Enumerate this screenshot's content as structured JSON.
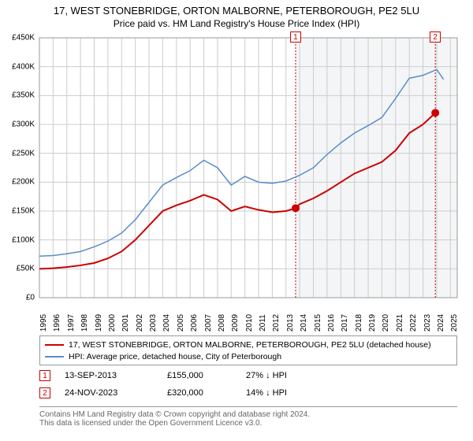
{
  "title": "17, WEST STONEBRIDGE, ORTON MALBORNE, PETERBOROUGH, PE2 5LU",
  "subtitle": "Price paid vs. HM Land Registry's House Price Index (HPI)",
  "chart": {
    "type": "line",
    "background_color": "#ffffff",
    "grid_color": "#cccccc",
    "shaded_region_color": "#f4f5f7",
    "xlim": [
      1995,
      2025.5
    ],
    "ylim": [
      0,
      450000
    ],
    "ytick_step": 50000,
    "yticks": [
      "£0",
      "£50K",
      "£100K",
      "£150K",
      "£200K",
      "£250K",
      "£300K",
      "£350K",
      "£400K",
      "£450K"
    ],
    "xticks": [
      1995,
      1996,
      1997,
      1998,
      1999,
      2000,
      2001,
      2002,
      2003,
      2004,
      2005,
      2006,
      2007,
      2008,
      2009,
      2010,
      2011,
      2012,
      2013,
      2014,
      2015,
      2016,
      2017,
      2018,
      2019,
      2020,
      2021,
      2022,
      2023,
      2024,
      2025
    ],
    "shaded_from_year": 2013.7,
    "marker_vlines": [
      {
        "year": 2013.7,
        "color": "#cc0000",
        "label": "1"
      },
      {
        "year": 2023.9,
        "color": "#cc0000",
        "label": "2"
      }
    ],
    "markers": [
      {
        "year": 2013.7,
        "value": 155000,
        "color": "#cc0000"
      },
      {
        "year": 2023.9,
        "value": 320000,
        "color": "#cc0000"
      }
    ],
    "series": [
      {
        "name": "property",
        "color": "#cc0000",
        "line_width": 2,
        "data": [
          [
            1995,
            50000
          ],
          [
            1996,
            51000
          ],
          [
            1997,
            53000
          ],
          [
            1998,
            56000
          ],
          [
            1999,
            60000
          ],
          [
            2000,
            68000
          ],
          [
            2001,
            80000
          ],
          [
            2002,
            100000
          ],
          [
            2003,
            125000
          ],
          [
            2004,
            150000
          ],
          [
            2005,
            160000
          ],
          [
            2006,
            168000
          ],
          [
            2007,
            178000
          ],
          [
            2008,
            170000
          ],
          [
            2009,
            150000
          ],
          [
            2010,
            158000
          ],
          [
            2011,
            152000
          ],
          [
            2012,
            148000
          ],
          [
            2013,
            150000
          ],
          [
            2013.7,
            155000
          ],
          [
            2014,
            162000
          ],
          [
            2015,
            172000
          ],
          [
            2016,
            185000
          ],
          [
            2017,
            200000
          ],
          [
            2018,
            215000
          ],
          [
            2019,
            225000
          ],
          [
            2020,
            235000
          ],
          [
            2021,
            255000
          ],
          [
            2022,
            285000
          ],
          [
            2023,
            300000
          ],
          [
            2023.9,
            320000
          ]
        ]
      },
      {
        "name": "hpi",
        "color": "#5b8cc9",
        "line_width": 1.5,
        "data": [
          [
            1995,
            72000
          ],
          [
            1996,
            73000
          ],
          [
            1997,
            76000
          ],
          [
            1998,
            80000
          ],
          [
            1999,
            88000
          ],
          [
            2000,
            98000
          ],
          [
            2001,
            112000
          ],
          [
            2002,
            135000
          ],
          [
            2003,
            165000
          ],
          [
            2004,
            195000
          ],
          [
            2005,
            208000
          ],
          [
            2006,
            220000
          ],
          [
            2007,
            238000
          ],
          [
            2008,
            225000
          ],
          [
            2009,
            195000
          ],
          [
            2010,
            210000
          ],
          [
            2011,
            200000
          ],
          [
            2012,
            198000
          ],
          [
            2013,
            202000
          ],
          [
            2014,
            212000
          ],
          [
            2015,
            225000
          ],
          [
            2016,
            248000
          ],
          [
            2017,
            268000
          ],
          [
            2018,
            285000
          ],
          [
            2019,
            298000
          ],
          [
            2020,
            312000
          ],
          [
            2021,
            345000
          ],
          [
            2022,
            380000
          ],
          [
            2023,
            385000
          ],
          [
            2024,
            395000
          ],
          [
            2024.5,
            378000
          ]
        ]
      }
    ]
  },
  "legend": {
    "items": [
      {
        "color": "#cc0000",
        "label": "17, WEST STONEBRIDGE, ORTON MALBORNE, PETERBOROUGH, PE2 5LU (detached house)"
      },
      {
        "color": "#5b8cc9",
        "label": "HPI: Average price, detached house, City of Peterborough"
      }
    ]
  },
  "sales": [
    {
      "marker": "1",
      "marker_color": "#cc0000",
      "date": "13-SEP-2013",
      "price": "£155,000",
      "delta": "27% ↓ HPI"
    },
    {
      "marker": "2",
      "marker_color": "#cc0000",
      "date": "24-NOV-2023",
      "price": "£320,000",
      "delta": "14% ↓ HPI"
    }
  ],
  "footer": {
    "line1": "Contains HM Land Registry data © Crown copyright and database right 2024.",
    "line2": "This data is licensed under the Open Government Licence v3.0."
  }
}
